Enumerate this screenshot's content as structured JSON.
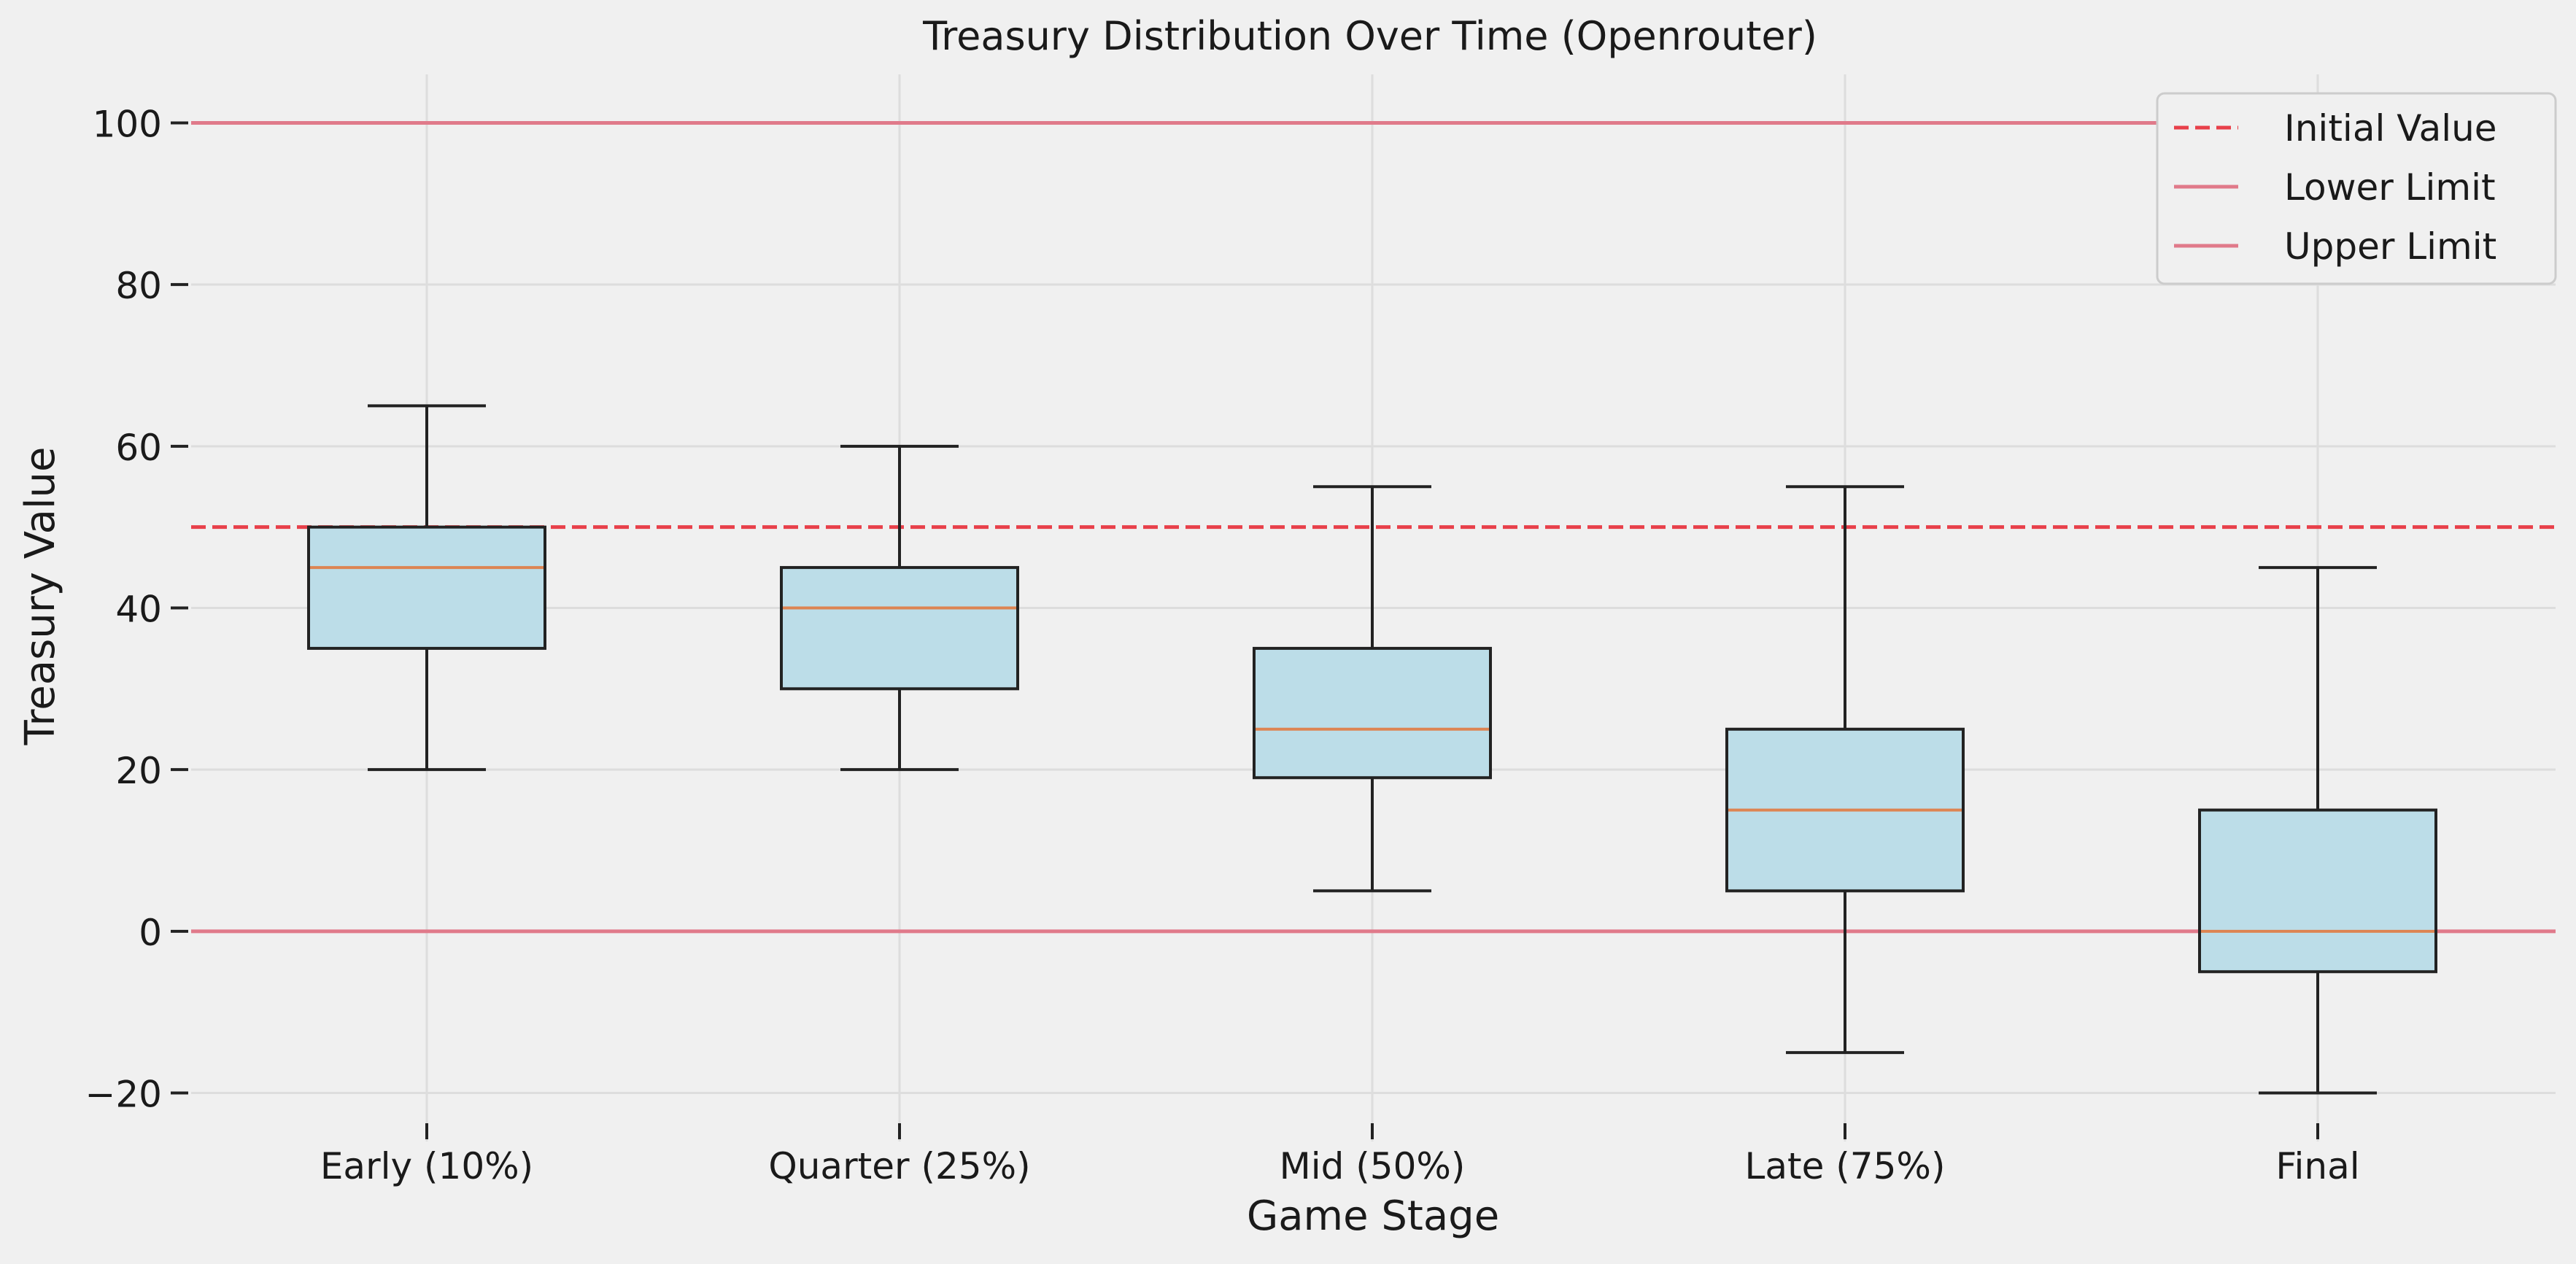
{
  "chart_data": {
    "type": "box",
    "title": "Treasury Distribution Over Time (Openrouter)",
    "xlabel": "Game Stage",
    "ylabel": "Treasury Value",
    "ylim": [
      -26,
      106
    ],
    "yticks": [
      -20,
      0,
      20,
      40,
      60,
      80,
      100
    ],
    "grid": true,
    "legend_position": "top-right",
    "categories": [
      "Early (10%)",
      "Quarter (25%)",
      "Mid (50%)",
      "Late (75%)",
      "Final"
    ],
    "boxes": [
      {
        "whisker_low": 20,
        "q1": 35,
        "median": 45,
        "q3": 50,
        "whisker_high": 65
      },
      {
        "whisker_low": 20,
        "q1": 30,
        "median": 40,
        "q3": 45,
        "whisker_high": 60
      },
      {
        "whisker_low": 5,
        "q1": 19,
        "median": 25,
        "q3": 35,
        "whisker_high": 55
      },
      {
        "whisker_low": -15,
        "q1": 5,
        "median": 15,
        "q3": 25,
        "whisker_high": 55
      },
      {
        "whisker_low": -20,
        "q1": -5,
        "median": 0,
        "q3": 15,
        "whisker_high": 45
      }
    ],
    "reference_lines": [
      {
        "name": "Initial Value",
        "value": 50,
        "style": "dashed",
        "color": "#e8404a"
      },
      {
        "name": "Lower Limit",
        "value": 0,
        "style": "solid",
        "color": "#e07a8a"
      },
      {
        "name": "Upper Limit",
        "value": 100,
        "style": "solid",
        "color": "#e07a8a"
      }
    ],
    "colors": {
      "box_fill": "#bcdde8",
      "box_edge": "#222222",
      "median": "#dd8452",
      "grid": "#dddddd"
    }
  }
}
